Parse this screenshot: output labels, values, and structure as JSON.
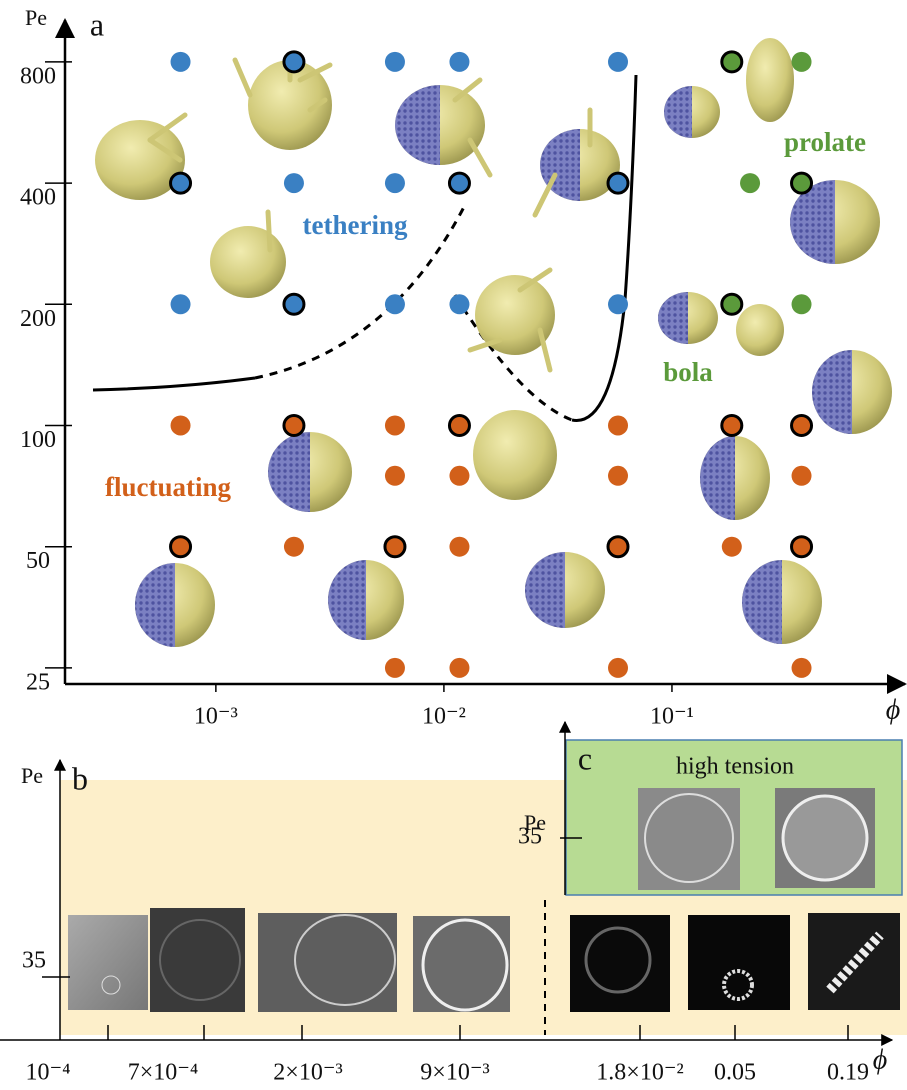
{
  "chart_data": {
    "type": "scatter",
    "panel_label": "a",
    "x_label": "ϕ",
    "y_label": "Pe",
    "xlog": true,
    "ylog": true,
    "xlim": [
      0.000218,
      1
    ],
    "ylim": [
      22.8,
      960
    ],
    "xticks": [
      {
        "value": 0.001,
        "label": "10⁻³"
      },
      {
        "value": 0.01,
        "label": "10⁻²"
      },
      {
        "value": 0.1,
        "label": "10⁻¹"
      }
    ],
    "yticks": [
      25,
      50,
      100,
      200,
      400,
      800
    ],
    "series": [
      {
        "color": "#3a80c3",
        "x": [
          0.0007,
          0.0022,
          0.0061,
          0.0117,
          0.058,
          0.0007,
          0.0022,
          0.0061,
          0.0117,
          0.058,
          0.0007,
          0.0022,
          0.0061,
          0.0117,
          0.058
        ],
        "values": [
          800,
          800,
          800,
          800,
          800,
          400,
          400,
          400,
          400,
          400,
          200,
          200,
          200,
          200,
          200
        ],
        "outlined": [
          false,
          true,
          false,
          false,
          false,
          true,
          false,
          false,
          true,
          true,
          false,
          true,
          false,
          false,
          false
        ]
      },
      {
        "color": "#5b9a3b",
        "x": [
          0.183,
          0.37,
          0.22,
          0.37,
          0.183,
          0.37
        ],
        "values": [
          800,
          800,
          400,
          400,
          200,
          200
        ],
        "outlined": [
          true,
          false,
          false,
          true,
          true,
          false
        ]
      },
      {
        "color": "#d2601a",
        "x": [
          0.0007,
          0.0022,
          0.0061,
          0.0117,
          0.058,
          0.183,
          0.37,
          0.0061,
          0.0117,
          0.058,
          0.37,
          0.0007,
          0.0022,
          0.0061,
          0.0117,
          0.058,
          0.183,
          0.37,
          0.0061,
          0.0117,
          0.058,
          0.37
        ],
        "values": [
          100,
          100,
          100,
          100,
          100,
          100,
          100,
          75,
          75,
          75,
          75,
          50,
          50,
          50,
          50,
          50,
          50,
          50,
          25,
          25,
          25,
          25
        ],
        "outlined": [
          false,
          true,
          false,
          true,
          false,
          true,
          true,
          false,
          false,
          false,
          false,
          true,
          false,
          true,
          false,
          true,
          false,
          true,
          false,
          false,
          false,
          false
        ]
      }
    ],
    "annotations": [
      {
        "text": "tethering",
        "color": "#3a80c3"
      },
      {
        "text": "fluctuating",
        "color": "#d2601a"
      },
      {
        "text": "prolate",
        "color": "#5b9a3b"
      },
      {
        "text": "bola",
        "color": "#5b9a3b"
      }
    ]
  },
  "panel_b": {
    "label": "b",
    "y_label": "Pe",
    "yticks": [
      35
    ],
    "x_label": "ϕ",
    "categories": [
      "10⁻⁴",
      "7×10⁻⁴",
      "2×10⁻³",
      "9×10⁻³",
      "1.8×10⁻²",
      "0.05",
      "0.19"
    ]
  },
  "panel_c": {
    "label": "c",
    "title": "high tension",
    "y_label": "Pe",
    "yticks": [
      35
    ]
  }
}
